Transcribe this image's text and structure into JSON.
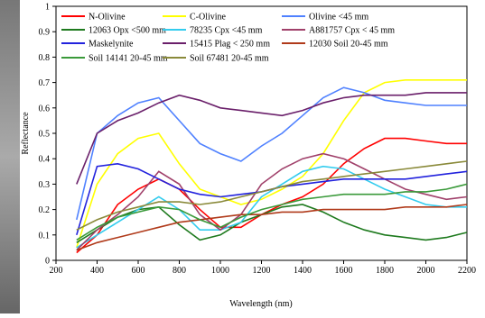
{
  "chart_data": {
    "type": "line",
    "x_label": "Wavelength (nm)",
    "y_label": "Reflectance",
    "x": [
      300,
      400,
      500,
      600,
      700,
      800,
      900,
      1000,
      1100,
      1200,
      1300,
      1400,
      1500,
      1600,
      1700,
      1800,
      1900,
      2000,
      2100,
      2200
    ],
    "xlim": [
      200,
      2200
    ],
    "xticks": [
      200,
      400,
      600,
      800,
      1000,
      1200,
      1400,
      1600,
      1800,
      2000,
      2200
    ],
    "ylim": [
      0,
      1
    ],
    "yticks": [
      0,
      0.1,
      0.2,
      0.3,
      0.4,
      0.5,
      0.6,
      0.7,
      0.8,
      0.9,
      1
    ],
    "series": [
      {
        "name": "N-Olivine",
        "color": "#ff0000",
        "values": [
          0.03,
          0.1,
          0.22,
          0.28,
          0.32,
          0.28,
          0.2,
          0.13,
          0.13,
          0.18,
          0.22,
          0.25,
          0.3,
          0.38,
          0.44,
          0.48,
          0.48,
          0.47,
          0.46,
          0.46
        ]
      },
      {
        "name": "C-Olivine",
        "color": "#ffff00",
        "values": [
          0.05,
          0.3,
          0.42,
          0.48,
          0.5,
          0.38,
          0.28,
          0.25,
          0.22,
          0.24,
          0.28,
          0.33,
          0.42,
          0.55,
          0.66,
          0.7,
          0.71,
          0.71,
          0.71,
          0.71
        ]
      },
      {
        "name": "Olivine <45 mm",
        "color": "#4f81ff",
        "values": [
          0.16,
          0.5,
          0.57,
          0.62,
          0.64,
          0.55,
          0.46,
          0.42,
          0.39,
          0.45,
          0.5,
          0.57,
          0.64,
          0.68,
          0.66,
          0.63,
          0.62,
          0.61,
          0.61,
          0.61
        ]
      },
      {
        "name": "12063 Opx <500 mm",
        "color": "#1e7a1e",
        "values": [
          0.07,
          0.12,
          0.17,
          0.2,
          0.21,
          0.14,
          0.08,
          0.1,
          0.15,
          0.18,
          0.21,
          0.22,
          0.19,
          0.15,
          0.12,
          0.1,
          0.09,
          0.08,
          0.09,
          0.11
        ]
      },
      {
        "name": "78235 Cpx <45 mm",
        "color": "#33ccee",
        "values": [
          0.05,
          0.1,
          0.15,
          0.2,
          0.25,
          0.2,
          0.12,
          0.12,
          0.15,
          0.25,
          0.3,
          0.35,
          0.37,
          0.36,
          0.32,
          0.28,
          0.25,
          0.22,
          0.21,
          0.21
        ]
      },
      {
        "name": "A881757 Cpx < 45 mm",
        "color": "#a0406a",
        "values": [
          0.04,
          0.12,
          0.18,
          0.25,
          0.35,
          0.3,
          0.18,
          0.12,
          0.18,
          0.3,
          0.36,
          0.4,
          0.42,
          0.4,
          0.36,
          0.32,
          0.28,
          0.26,
          0.24,
          0.25
        ]
      },
      {
        "name": "Maskelynite",
        "color": "#2222dd",
        "values": [
          0.1,
          0.37,
          0.38,
          0.36,
          0.32,
          0.28,
          0.26,
          0.25,
          0.26,
          0.27,
          0.29,
          0.3,
          0.31,
          0.32,
          0.32,
          0.32,
          0.32,
          0.33,
          0.34,
          0.35
        ]
      },
      {
        "name": "15415 Plag < 250 mm",
        "color": "#6a1f6a",
        "values": [
          0.3,
          0.5,
          0.55,
          0.58,
          0.62,
          0.65,
          0.63,
          0.6,
          0.59,
          0.58,
          0.57,
          0.59,
          0.62,
          0.64,
          0.65,
          0.65,
          0.65,
          0.66,
          0.66,
          0.66
        ]
      },
      {
        "name": "12030 Soil 20-45 mm",
        "color": "#b03a1a",
        "values": [
          0.04,
          0.07,
          0.09,
          0.11,
          0.13,
          0.15,
          0.16,
          0.17,
          0.18,
          0.18,
          0.19,
          0.19,
          0.2,
          0.2,
          0.2,
          0.2,
          0.21,
          0.21,
          0.21,
          0.22
        ]
      },
      {
        "name": "Soil 14141 20-45 mm",
        "color": "#3a9a3a",
        "values": [
          0.08,
          0.13,
          0.17,
          0.19,
          0.21,
          0.2,
          0.16,
          0.13,
          0.17,
          0.2,
          0.22,
          0.24,
          0.25,
          0.26,
          0.26,
          0.26,
          0.27,
          0.27,
          0.28,
          0.3
        ]
      },
      {
        "name": "Soil 67481 20-45 mm",
        "color": "#8a8a3a",
        "values": [
          0.12,
          0.16,
          0.19,
          0.21,
          0.23,
          0.23,
          0.22,
          0.23,
          0.25,
          0.27,
          0.29,
          0.31,
          0.32,
          0.33,
          0.34,
          0.35,
          0.36,
          0.37,
          0.38,
          0.39
        ]
      }
    ]
  }
}
